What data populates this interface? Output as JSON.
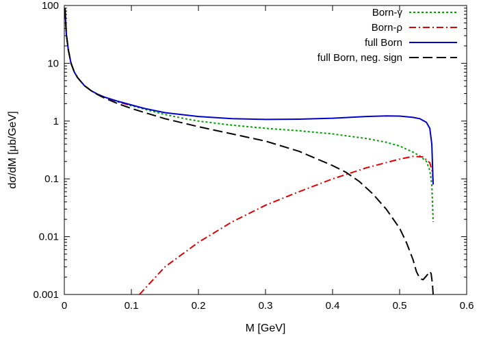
{
  "chart_data": {
    "type": "line",
    "title": "",
    "xlabel": "M [GeV]",
    "ylabel": "dσ/dM [μb/GeV]",
    "xlim": [
      0,
      0.6
    ],
    "ylim": [
      0.001,
      100
    ],
    "yscale": "log",
    "grid": false,
    "legend_position": "top-right",
    "x_ticks": [
      0,
      0.1,
      0.2,
      0.3,
      0.4,
      0.5,
      0.6
    ],
    "x_tick_labels": [
      "0",
      "0.1",
      "0.2",
      "0.3",
      "0.4",
      "0.5",
      "0.6"
    ],
    "y_ticks": [
      0.001,
      0.01,
      0.1,
      1,
      10,
      100
    ],
    "y_tick_labels": [
      "0.001",
      "0.01",
      "0.1",
      "1",
      "10",
      "100"
    ],
    "series": [
      {
        "name": "Born-γ",
        "color": "#00a000",
        "style": "dotted",
        "x": [
          0.001,
          0.003,
          0.006,
          0.01,
          0.015,
          0.02,
          0.03,
          0.04,
          0.05,
          0.06,
          0.08,
          0.1,
          0.12,
          0.15,
          0.18,
          0.2,
          0.25,
          0.3,
          0.35,
          0.4,
          0.45,
          0.48,
          0.5,
          0.52,
          0.53,
          0.54,
          0.545,
          0.548,
          0.55
        ],
        "y": [
          90,
          32,
          17,
          10,
          7,
          5.6,
          4.1,
          3.35,
          2.9,
          2.6,
          2.15,
          1.85,
          1.6,
          1.3,
          1.1,
          1.0,
          0.85,
          0.75,
          0.68,
          0.6,
          0.5,
          0.43,
          0.37,
          0.29,
          0.25,
          0.2,
          0.14,
          0.08,
          0.018
        ]
      },
      {
        "name": "Born-ρ",
        "color": "#e00000",
        "style": "dashdot",
        "x": [
          0.001,
          0.003,
          0.006,
          0.01,
          0.015,
          0.02,
          0.03,
          0.04,
          0.05,
          0.06,
          0.08,
          0.1,
          0.112,
          0.15,
          0.2,
          0.25,
          0.3,
          0.35,
          0.4,
          0.45,
          0.5,
          0.52,
          0.535,
          0.545,
          0.549,
          0.55
        ],
        "y": [
          90,
          32,
          17,
          10,
          7,
          5.6,
          4.1,
          3.35,
          2.9,
          2.6,
          2.15,
          1.85,
          0.001,
          0.003,
          0.008,
          0.018,
          0.035,
          0.06,
          0.1,
          0.155,
          0.22,
          0.245,
          0.24,
          0.19,
          0.13,
          0.08
        ]
      },
      {
        "name": "full Born",
        "color": "#0000cc",
        "style": "solid",
        "x": [
          0.001,
          0.003,
          0.006,
          0.01,
          0.015,
          0.02,
          0.03,
          0.04,
          0.05,
          0.06,
          0.08,
          0.1,
          0.12,
          0.15,
          0.2,
          0.25,
          0.3,
          0.35,
          0.4,
          0.45,
          0.48,
          0.5,
          0.52,
          0.53,
          0.54,
          0.545,
          0.548,
          0.55
        ],
        "y": [
          90,
          32,
          17,
          10,
          7,
          5.6,
          4.1,
          3.35,
          2.9,
          2.6,
          2.2,
          1.9,
          1.65,
          1.4,
          1.2,
          1.1,
          1.07,
          1.08,
          1.12,
          1.2,
          1.23,
          1.22,
          1.16,
          1.1,
          0.95,
          0.75,
          0.4,
          0.08
        ]
      },
      {
        "name": "full Born, neg. sign",
        "color": "#000000",
        "style": "dashed",
        "x": [
          0.001,
          0.003,
          0.006,
          0.01,
          0.015,
          0.02,
          0.03,
          0.04,
          0.05,
          0.06,
          0.08,
          0.1,
          0.15,
          0.2,
          0.25,
          0.3,
          0.35,
          0.4,
          0.42,
          0.44,
          0.46,
          0.48,
          0.5,
          0.51,
          0.52,
          0.525,
          0.53,
          0.535,
          0.54,
          0.545,
          0.547,
          0.549,
          0.55
        ],
        "y": [
          90,
          32,
          17,
          10,
          7,
          5.6,
          4.1,
          3.35,
          2.85,
          2.5,
          2.0,
          1.65,
          1.1,
          0.8,
          0.6,
          0.45,
          0.3,
          0.17,
          0.13,
          0.09,
          0.055,
          0.03,
          0.014,
          0.008,
          0.004,
          0.0025,
          0.0019,
          0.0018,
          0.0021,
          0.0025,
          0.0023,
          0.0015,
          0.001
        ]
      }
    ]
  }
}
